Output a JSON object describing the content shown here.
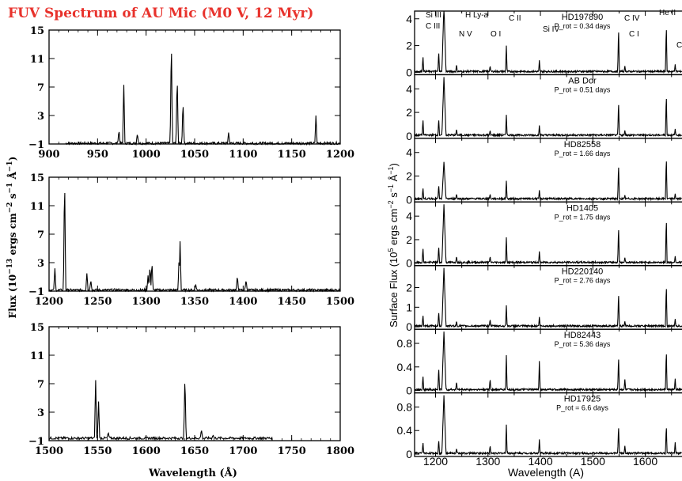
{
  "left_figure": {
    "title": "FUV Spectrum of AU Mic (M0 V, 12 Myr)",
    "title_color": "#e8322c",
    "ylabel": "Flux (10$-13$ ergs cm$-2$ s$-1$ Å$-1$)",
    "ylabel_parts": [
      "Flux (10",
      "−13",
      " ergs cm",
      "−2",
      " s",
      "−1",
      " Å",
      "−1",
      ")"
    ],
    "xlabel": "Wavelength (Å)"
  },
  "right_figure": {
    "ylabel_parts": [
      "Surface Flux (10",
      "5",
      " ergs cm",
      "−2",
      " s",
      "−1",
      " Å",
      "−1",
      ")"
    ],
    "xlabel": "Wavelength (A)",
    "line_ids": [
      {
        "label": "Si III",
        "wl": 1206
      },
      {
        "label": "C III",
        "wl": 1176
      },
      {
        "label": "H Ly-a",
        "wl": 1216
      },
      {
        "label": "N V",
        "wl": 1240
      },
      {
        "label": "O I",
        "wl": 1304
      },
      {
        "label": "C II",
        "wl": 1335
      },
      {
        "label": "Si IV",
        "wl": 1398
      },
      {
        "label": "C IV",
        "wl": 1549
      },
      {
        "label": "C I",
        "wl": 1561
      },
      {
        "label": "He II",
        "wl": 1640
      },
      {
        "label": "C",
        "wl": 1657
      }
    ]
  },
  "chart_data": [
    {
      "type": "line",
      "title": "FUV Spectrum of AU Mic (M0 V, 12 Myr)",
      "panel": "left-1",
      "xlim": [
        900,
        1200
      ],
      "ylim": [
        -1,
        15
      ],
      "xticks": [
        900,
        950,
        1000,
        1050,
        1100,
        1150,
        1200
      ],
      "yticks": [
        -1,
        3,
        7,
        11,
        15
      ],
      "x_range_data": [
        917,
        1200
      ],
      "continuum": -0.9,
      "lines": [
        [
          977,
          7.3
        ],
        [
          972,
          1.0
        ],
        [
          991,
          0.5
        ],
        [
          1026,
          14.2
        ],
        [
          1032,
          8.8
        ],
        [
          1038,
          5.2
        ],
        [
          1085,
          0.6
        ],
        [
          1175,
          3.0
        ]
      ]
    },
    {
      "type": "line",
      "panel": "left-2",
      "xlim": [
        1200,
        1500
      ],
      "ylim": [
        -1,
        15
      ],
      "xticks": [
        1200,
        1250,
        1300,
        1350,
        1400,
        1450,
        1500
      ],
      "yticks": [
        -1,
        3,
        7,
        11,
        15
      ],
      "x_range_data": [
        1200,
        1500
      ],
      "continuum": -0.85,
      "lines": [
        [
          1206,
          2.2
        ],
        [
          1216,
          15.5
        ],
        [
          1239,
          1.5
        ],
        [
          1243,
          0.6
        ],
        [
          1302,
          1.2
        ],
        [
          1304,
          2.6
        ],
        [
          1306,
          3.2
        ],
        [
          1335,
          6.0
        ],
        [
          1334,
          3.8
        ],
        [
          1351,
          0.0
        ],
        [
          1394,
          1.2
        ],
        [
          1403,
          0.6
        ]
      ]
    },
    {
      "type": "line",
      "panel": "left-3",
      "xlim": [
        1500,
        1800
      ],
      "ylim": [
        -1,
        15
      ],
      "xticks": [
        1500,
        1550,
        1600,
        1650,
        1700,
        1750,
        1800
      ],
      "yticks": [
        -1,
        3,
        7,
        11,
        15
      ],
      "x_range_data": [
        1500,
        1730
      ],
      "continuum": -0.65,
      "lines": [
        [
          1548,
          7.5
        ],
        [
          1551,
          4.5
        ],
        [
          1561,
          0.2
        ],
        [
          1640,
          8.5
        ],
        [
          1657,
          0.6
        ],
        [
          1669,
          -0.2
        ]
      ],
      "xlabel": "Wavelength (Å)"
    },
    {
      "type": "line",
      "panel": "right-stack",
      "xlim": [
        1160,
        1670
      ],
      "xticks": [
        1200,
        1300,
        1400,
        1500,
        1600
      ],
      "xlabel": "Wavelength (A)",
      "ylabel": "Surface Flux (10^5 ergs cm^-2 s^-1 A^-1)",
      "series": [
        {
          "name": "HD197890",
          "prot": "P_rot = 0.34 days",
          "ylim": [
            0,
            4.4
          ],
          "yticks": [
            0,
            2,
            4
          ],
          "peaks": [
            [
              1176,
              1.2
            ],
            [
              1206,
              1.6
            ],
            [
              1216,
              5.0
            ],
            [
              1240,
              0.6
            ],
            [
              1304,
              0.5
            ],
            [
              1335,
              2.0
            ],
            [
              1398,
              0.9
            ],
            [
              1549,
              3.4
            ],
            [
              1561,
              0.5
            ],
            [
              1640,
              3.6
            ],
            [
              1657,
              0.6
            ]
          ]
        },
        {
          "name": "AB Dor",
          "prot": "P_rot = 0.51 days",
          "ylim": [
            0,
            5
          ],
          "yticks": [
            0,
            2,
            4
          ],
          "peaks": [
            [
              1176,
              1.4
            ],
            [
              1206,
              1.5
            ],
            [
              1216,
              5.0
            ],
            [
              1240,
              0.6
            ],
            [
              1304,
              0.5
            ],
            [
              1335,
              1.8
            ],
            [
              1398,
              0.9
            ],
            [
              1549,
              3.0
            ],
            [
              1561,
              0.5
            ],
            [
              1640,
              3.6
            ],
            [
              1657,
              0.6
            ]
          ]
        },
        {
          "name": "HD82558",
          "prot": "P_rot = 1.66 days",
          "ylim": [
            0,
            5
          ],
          "yticks": [
            0,
            2,
            4
          ],
          "peaks": [
            [
              1176,
              1.0
            ],
            [
              1206,
              1.3
            ],
            [
              1216,
              3.2
            ],
            [
              1240,
              0.5
            ],
            [
              1304,
              0.5
            ],
            [
              1335,
              1.6
            ],
            [
              1398,
              0.8
            ],
            [
              1549,
              3.1
            ],
            [
              1561,
              0.4
            ],
            [
              1640,
              3.7
            ],
            [
              1657,
              0.5
            ]
          ]
        },
        {
          "name": "HD1405",
          "prot": "P_rot = 1.75 days",
          "ylim": [
            0,
            5
          ],
          "yticks": [
            0,
            2,
            4
          ],
          "peaks": [
            [
              1176,
              1.3
            ],
            [
              1206,
              1.5
            ],
            [
              1216,
              5.0
            ],
            [
              1240,
              0.6
            ],
            [
              1304,
              0.6
            ],
            [
              1335,
              2.2
            ],
            [
              1398,
              1.0
            ],
            [
              1549,
              3.2
            ],
            [
              1561,
              0.5
            ],
            [
              1640,
              3.9
            ],
            [
              1657,
              0.6
            ]
          ]
        },
        {
          "name": "HD220140",
          "prot": "P_rot = 2.76 days",
          "ylim": [
            0,
            3
          ],
          "yticks": [
            0,
            1,
            2
          ],
          "peaks": [
            [
              1176,
              0.6
            ],
            [
              1206,
              0.8
            ],
            [
              1216,
              3.0
            ],
            [
              1240,
              0.3
            ],
            [
              1304,
              0.4
            ],
            [
              1335,
              1.1
            ],
            [
              1398,
              0.5
            ],
            [
              1549,
              1.8
            ],
            [
              1561,
              0.3
            ],
            [
              1640,
              2.2
            ],
            [
              1657,
              0.4
            ]
          ]
        },
        {
          "name": "HD82443",
          "prot": "P_rot = 5.36 days",
          "ylim": [
            0,
            1.0
          ],
          "yticks": [
            0,
            0.4,
            0.8
          ],
          "peaks": [
            [
              1176,
              0.25
            ],
            [
              1206,
              0.4
            ],
            [
              1216,
              1.0
            ],
            [
              1240,
              0.15
            ],
            [
              1304,
              0.2
            ],
            [
              1335,
              0.6
            ],
            [
              1398,
              0.5
            ],
            [
              1549,
              0.6
            ],
            [
              1561,
              0.2
            ],
            [
              1640,
              0.7
            ],
            [
              1657,
              0.2
            ]
          ]
        },
        {
          "name": "HD17925",
          "prot": "P_rot = 6.6 days",
          "ylim": [
            0,
            1.0
          ],
          "yticks": [
            0,
            0.4,
            0.8
          ],
          "peaks": [
            [
              1176,
              0.2
            ],
            [
              1206,
              0.25
            ],
            [
              1216,
              1.0
            ],
            [
              1240,
              0.1
            ],
            [
              1304,
              0.15
            ],
            [
              1335,
              0.5
            ],
            [
              1398,
              0.25
            ],
            [
              1549,
              0.5
            ],
            [
              1561,
              0.15
            ],
            [
              1640,
              0.5
            ],
            [
              1657,
              0.2
            ]
          ]
        }
      ]
    }
  ]
}
